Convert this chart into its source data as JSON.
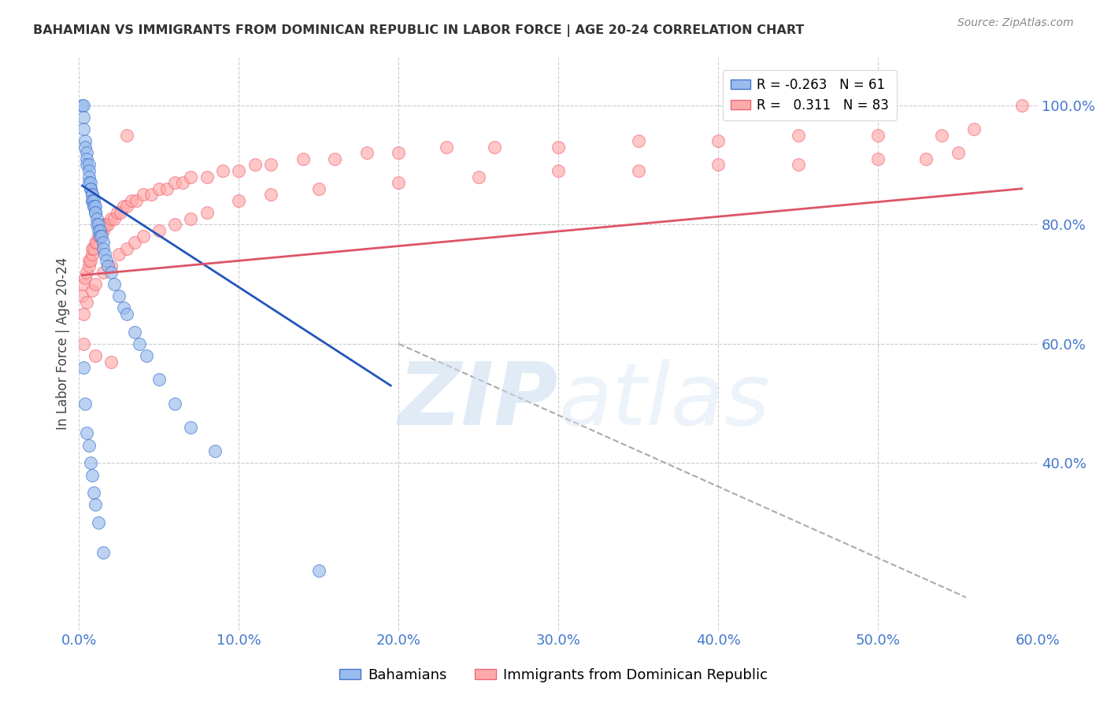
{
  "title": "BAHAMIAN VS IMMIGRANTS FROM DOMINICAN REPUBLIC IN LABOR FORCE | AGE 20-24 CORRELATION CHART",
  "source": "Source: ZipAtlas.com",
  "ylabel": "In Labor Force | Age 20-24",
  "xlim": [
    0.0,
    0.6
  ],
  "ylim_data": [
    0.0,
    1.05
  ],
  "ytick_vals": [
    0.4,
    0.6,
    0.8,
    1.0
  ],
  "xtick_vals": [
    0.0,
    0.1,
    0.2,
    0.3,
    0.4,
    0.5,
    0.6
  ],
  "blue_R": -0.263,
  "blue_N": 61,
  "pink_R": 0.311,
  "pink_N": 83,
  "blue_fill": "#99BBEE",
  "pink_fill": "#FFAAAA",
  "blue_edge": "#4477CC",
  "pink_edge": "#EE6677",
  "blue_line": "#2255BB",
  "pink_line": "#DD5566",
  "background_color": "#FFFFFF",
  "grid_color": "#CCCCCC",
  "axis_color": "#4477CC",
  "title_color": "#333333",
  "legend_label_blue": "Bahamians",
  "legend_label_pink": "Immigrants from Dominican Republic",
  "blue_x": [
    0.002,
    0.003,
    0.003,
    0.003,
    0.004,
    0.004,
    0.005,
    0.005,
    0.005,
    0.006,
    0.006,
    0.006,
    0.006,
    0.007,
    0.007,
    0.007,
    0.008,
    0.008,
    0.008,
    0.008,
    0.009,
    0.009,
    0.009,
    0.01,
    0.01,
    0.01,
    0.011,
    0.011,
    0.012,
    0.012,
    0.013,
    0.013,
    0.014,
    0.015,
    0.015,
    0.016,
    0.017,
    0.018,
    0.02,
    0.022,
    0.025,
    0.028,
    0.03,
    0.035,
    0.038,
    0.042,
    0.05,
    0.06,
    0.07,
    0.085,
    0.003,
    0.004,
    0.005,
    0.006,
    0.007,
    0.008,
    0.009,
    0.01,
    0.012,
    0.015,
    0.15
  ],
  "blue_y": [
    1.0,
    1.0,
    0.98,
    0.96,
    0.94,
    0.93,
    0.92,
    0.91,
    0.9,
    0.9,
    0.89,
    0.88,
    0.87,
    0.87,
    0.86,
    0.86,
    0.85,
    0.85,
    0.84,
    0.84,
    0.84,
    0.83,
    0.83,
    0.83,
    0.82,
    0.82,
    0.81,
    0.8,
    0.8,
    0.79,
    0.79,
    0.78,
    0.78,
    0.77,
    0.76,
    0.75,
    0.74,
    0.73,
    0.72,
    0.7,
    0.68,
    0.66,
    0.65,
    0.62,
    0.6,
    0.58,
    0.54,
    0.5,
    0.46,
    0.42,
    0.56,
    0.5,
    0.45,
    0.43,
    0.4,
    0.38,
    0.35,
    0.33,
    0.3,
    0.25,
    0.22
  ],
  "pink_x": [
    0.002,
    0.003,
    0.004,
    0.005,
    0.006,
    0.006,
    0.007,
    0.008,
    0.008,
    0.009,
    0.01,
    0.011,
    0.012,
    0.013,
    0.014,
    0.015,
    0.016,
    0.017,
    0.018,
    0.02,
    0.022,
    0.024,
    0.026,
    0.028,
    0.03,
    0.033,
    0.036,
    0.04,
    0.045,
    0.05,
    0.055,
    0.06,
    0.065,
    0.07,
    0.08,
    0.09,
    0.1,
    0.11,
    0.12,
    0.14,
    0.16,
    0.18,
    0.2,
    0.23,
    0.26,
    0.3,
    0.35,
    0.4,
    0.45,
    0.5,
    0.54,
    0.56,
    0.59,
    0.003,
    0.005,
    0.008,
    0.01,
    0.015,
    0.02,
    0.025,
    0.03,
    0.035,
    0.04,
    0.05,
    0.06,
    0.07,
    0.08,
    0.1,
    0.12,
    0.15,
    0.2,
    0.25,
    0.3,
    0.35,
    0.4,
    0.45,
    0.5,
    0.53,
    0.55,
    0.003,
    0.01,
    0.02,
    0.03
  ],
  "pink_y": [
    0.68,
    0.7,
    0.71,
    0.72,
    0.73,
    0.74,
    0.74,
    0.75,
    0.76,
    0.76,
    0.77,
    0.77,
    0.78,
    0.78,
    0.79,
    0.79,
    0.8,
    0.8,
    0.8,
    0.81,
    0.81,
    0.82,
    0.82,
    0.83,
    0.83,
    0.84,
    0.84,
    0.85,
    0.85,
    0.86,
    0.86,
    0.87,
    0.87,
    0.88,
    0.88,
    0.89,
    0.89,
    0.9,
    0.9,
    0.91,
    0.91,
    0.92,
    0.92,
    0.93,
    0.93,
    0.93,
    0.94,
    0.94,
    0.95,
    0.95,
    0.95,
    0.96,
    1.0,
    0.65,
    0.67,
    0.69,
    0.7,
    0.72,
    0.73,
    0.75,
    0.76,
    0.77,
    0.78,
    0.79,
    0.8,
    0.81,
    0.82,
    0.84,
    0.85,
    0.86,
    0.87,
    0.88,
    0.89,
    0.89,
    0.9,
    0.9,
    0.91,
    0.91,
    0.92,
    0.6,
    0.58,
    0.57,
    0.95
  ],
  "blue_line_x": [
    0.002,
    0.195
  ],
  "blue_line_y": [
    0.865,
    0.53
  ],
  "pink_line_x": [
    0.002,
    0.59
  ],
  "pink_line_y": [
    0.715,
    0.86
  ],
  "dash_line_x": [
    0.2,
    0.555
  ],
  "dash_line_y": [
    0.6,
    0.175
  ]
}
